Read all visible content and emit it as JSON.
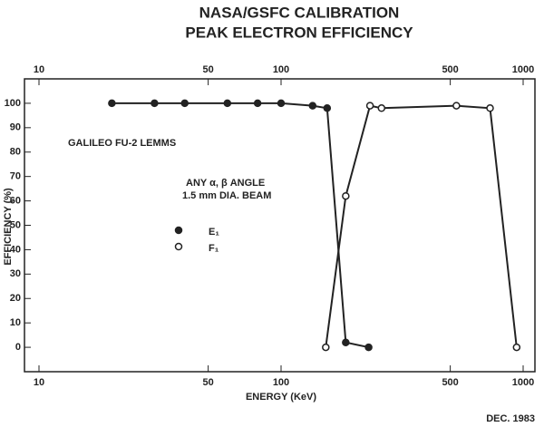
{
  "chart_data": {
    "type": "line",
    "title": "NASA/GSFC CALIBRATION",
    "subtitle": "PEAK ELECTRON EFFICIENCY",
    "xlabel": "ENERGY (KeV)",
    "ylabel": "EFFICIENCY (%)",
    "annotations": [
      "GALILEO FU-2 LEMMS",
      "ANY α, β ANGLE",
      "1.5 mm DIA. BEAM",
      "DEC. 1983"
    ],
    "xscale": "log",
    "xlim": [
      10,
      1000
    ],
    "xticks": [
      10,
      50,
      100,
      500,
      1000
    ],
    "ylim": [
      -10,
      110
    ],
    "yticks": [
      0,
      10,
      20,
      30,
      40,
      50,
      60,
      70,
      80,
      90,
      100
    ],
    "series": [
      {
        "name": "E₁",
        "color": "#222222",
        "marker": "filled",
        "x": [
          20,
          30,
          40,
          60,
          80,
          100,
          135,
          155,
          185,
          230
        ],
        "values": [
          100,
          100,
          100,
          100,
          100,
          100,
          99,
          98,
          2,
          0
        ]
      },
      {
        "name": "F₁",
        "color": "#222222",
        "marker": "open",
        "x": [
          153,
          185,
          233,
          260,
          530,
          730,
          940
        ],
        "values": [
          0,
          62,
          99,
          98,
          99,
          98,
          0
        ]
      }
    ]
  }
}
